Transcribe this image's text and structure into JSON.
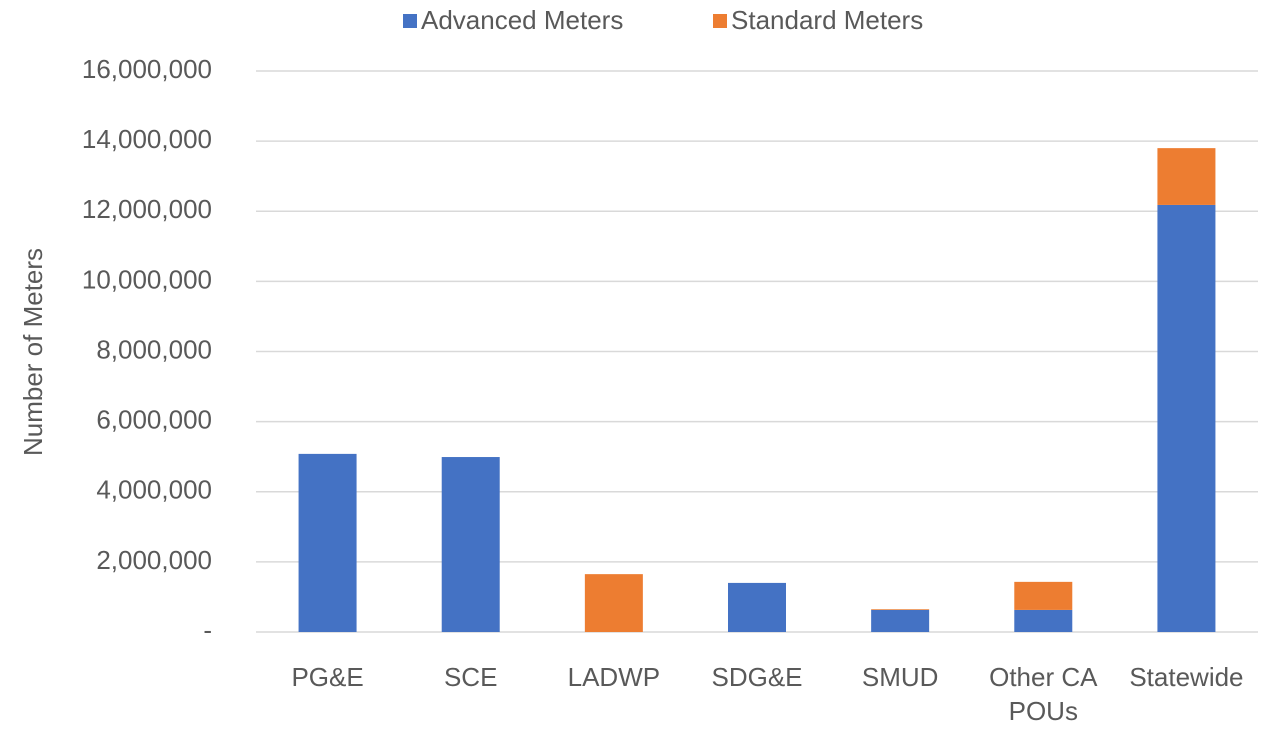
{
  "chart_data": {
    "type": "bar",
    "stacked": true,
    "y_label": "Number of Meters",
    "categories": [
      "PG&E",
      "SCE",
      "LADWP",
      "SDG&E",
      "SMUD",
      "Other CA POUs",
      "Statewide"
    ],
    "series": [
      {
        "name": "Advanced Meters",
        "color": "#4472c4",
        "values": [
          5080000,
          4990000,
          0,
          1400000,
          630000,
          630000,
          12180000
        ]
      },
      {
        "name": "Standard Meters",
        "color": "#ed7d31",
        "values": [
          0,
          0,
          1650000,
          0,
          20000,
          800000,
          1620000
        ]
      }
    ],
    "ylim": [
      0,
      16000000
    ],
    "yticks": [
      {
        "value": 0,
        "label": "-"
      },
      {
        "value": 2000000,
        "label": "2,000,000"
      },
      {
        "value": 4000000,
        "label": "4,000,000"
      },
      {
        "value": 6000000,
        "label": "6,000,000"
      },
      {
        "value": 8000000,
        "label": "8,000,000"
      },
      {
        "value": 10000000,
        "label": "10,000,000"
      },
      {
        "value": 12000000,
        "label": "12,000,000"
      },
      {
        "value": 14000000,
        "label": "14,000,000"
      },
      {
        "value": 16000000,
        "label": "16,000,000"
      }
    ],
    "grid": true,
    "legend": "top"
  }
}
